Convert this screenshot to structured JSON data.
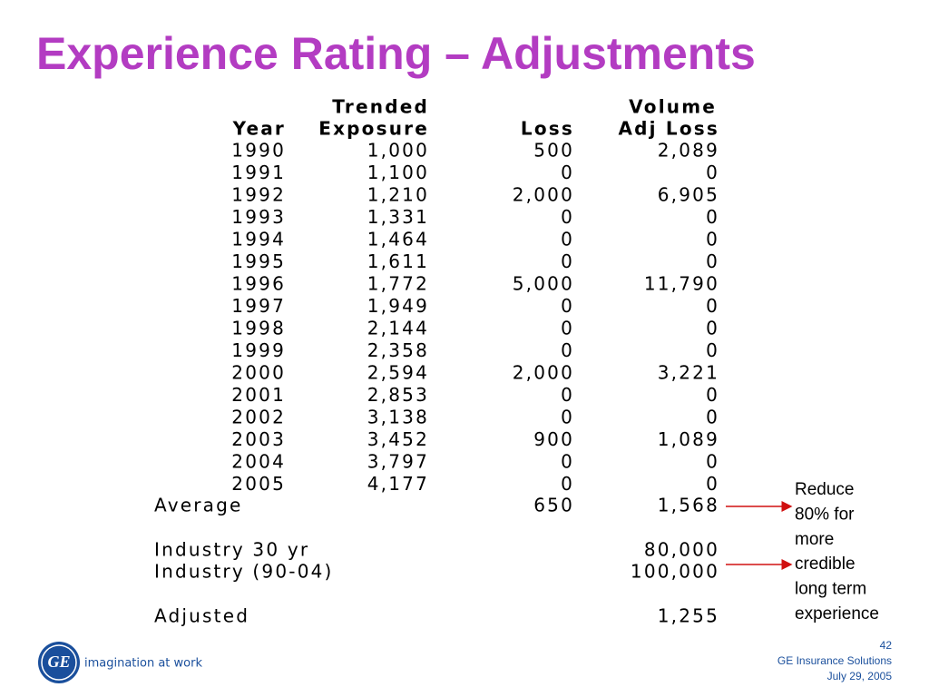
{
  "title": "Experience Rating – Adjustments",
  "table": {
    "header_top": {
      "exposure": "Trended",
      "volume_adj_loss": "Volume"
    },
    "header": [
      "Year",
      "Exposure",
      "Loss",
      "Adj Loss"
    ],
    "rows": [
      [
        "1990",
        "1,000",
        "500",
        "2,089"
      ],
      [
        "1991",
        "1,100",
        "0",
        "0"
      ],
      [
        "1992",
        "1,210",
        "2,000",
        "6,905"
      ],
      [
        "1993",
        "1,331",
        "0",
        "0"
      ],
      [
        "1994",
        "1,464",
        "0",
        "0"
      ],
      [
        "1995",
        "1,611",
        "0",
        "0"
      ],
      [
        "1996",
        "1,772",
        "5,000",
        "11,790"
      ],
      [
        "1997",
        "1,949",
        "0",
        "0"
      ],
      [
        "1998",
        "2,144",
        "0",
        "0"
      ],
      [
        "1999",
        "2,358",
        "0",
        "0"
      ],
      [
        "2000",
        "2,594",
        "2,000",
        "3,221"
      ],
      [
        "2001",
        "2,853",
        "0",
        "0"
      ],
      [
        "2002",
        "3,138",
        "0",
        "0"
      ],
      [
        "2003",
        "3,452",
        "900",
        "1,089"
      ],
      [
        "2004",
        "3,797",
        "0",
        "0"
      ],
      [
        "2005",
        "4,177",
        "0",
        "0"
      ]
    ],
    "summary": [
      {
        "label": "Average",
        "loss": "650",
        "volume_adj_loss": "1,568"
      },
      {
        "label": "Industry 30 yr",
        "volume_adj_loss": "80,000"
      },
      {
        "label": "Industry (90-04)",
        "volume_adj_loss": "100,000"
      },
      {
        "label": "Adjusted",
        "volume_adj_loss": "1,255"
      }
    ]
  },
  "note": [
    "Reduce",
    "80% for",
    "more",
    "credible",
    "long term",
    "experience"
  ],
  "logo": {
    "mark": "GE",
    "tagline": "imagination at work"
  },
  "footer": {
    "page": "42",
    "company": "GE Insurance Solutions",
    "date": "July 29, 2005"
  }
}
